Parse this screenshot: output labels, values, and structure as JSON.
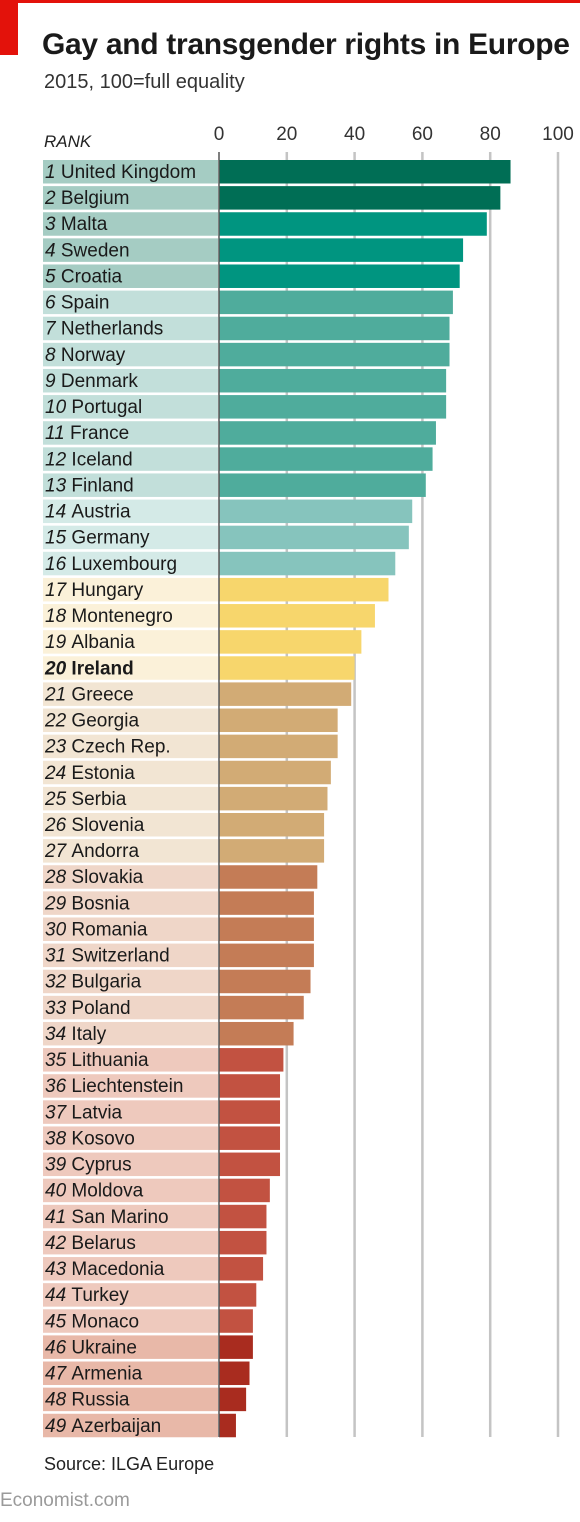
{
  "header": {
    "title": "Gay and transgender rights in Europe",
    "subtitle": "2015, 100=full equality",
    "rank_label": "RANK"
  },
  "footer": {
    "source": "Source: ILGA Europe",
    "credit": "Economist.com"
  },
  "colors": {
    "brand_red": "#e3120b",
    "group_1": "#006e55",
    "group_2": "#009580",
    "group_3": "#4fac9c",
    "group_4": "#86c4bd",
    "group_5": "#f7d66c",
    "group_6": "#d2ab75",
    "group_7": "#c47c56",
    "group_8": "#c25241",
    "group_9": "#a92c1f"
  },
  "chart_data": {
    "type": "bar",
    "orientation": "horizontal",
    "title": "Gay and transgender rights in Europe",
    "subtitle": "2015, 100=full equality",
    "xlim": [
      0,
      100
    ],
    "xticks": [
      0,
      20,
      40,
      60,
      80,
      100
    ],
    "grid": true,
    "highlight": "Ireland",
    "categories": [
      "United Kingdom",
      "Belgium",
      "Malta",
      "Sweden",
      "Croatia",
      "Spain",
      "Netherlands",
      "Norway",
      "Denmark",
      "Portugal",
      "France",
      "Iceland",
      "Finland",
      "Austria",
      "Germany",
      "Luxembourg",
      "Hungary",
      "Montenegro",
      "Albania",
      "Ireland",
      "Greece",
      "Georgia",
      "Czech Rep.",
      "Estonia",
      "Serbia",
      "Slovenia",
      "Andorra",
      "Slovakia",
      "Bosnia",
      "Romania",
      "Switzerland",
      "Bulgaria",
      "Poland",
      "Italy",
      "Lithuania",
      "Liechtenstein",
      "Latvia",
      "Kosovo",
      "Cyprus",
      "Moldova",
      "San Marino",
      "Belarus",
      "Macedonia",
      "Turkey",
      "Monaco",
      "Ukraine",
      "Armenia",
      "Russia",
      "Azerbaijan"
    ],
    "ranks": [
      1,
      2,
      3,
      4,
      5,
      6,
      7,
      8,
      9,
      10,
      11,
      12,
      13,
      14,
      15,
      16,
      17,
      18,
      19,
      20,
      21,
      22,
      23,
      24,
      25,
      26,
      27,
      28,
      29,
      30,
      31,
      32,
      33,
      34,
      35,
      36,
      37,
      38,
      39,
      40,
      41,
      42,
      43,
      44,
      45,
      46,
      47,
      48,
      49
    ],
    "values": [
      86,
      83,
      79,
      72,
      71,
      69,
      68,
      68,
      67,
      67,
      64,
      63,
      61,
      57,
      56,
      52,
      50,
      46,
      42,
      40,
      39,
      35,
      35,
      33,
      32,
      31,
      31,
      29,
      28,
      28,
      28,
      27,
      25,
      22,
      19,
      18,
      18,
      18,
      18,
      15,
      14,
      14,
      13,
      11,
      10,
      10,
      9,
      8,
      5
    ],
    "groups": [
      1,
      1,
      2,
      2,
      2,
      3,
      3,
      3,
      3,
      3,
      3,
      3,
      3,
      4,
      4,
      4,
      5,
      5,
      5,
      5,
      6,
      6,
      6,
      6,
      6,
      6,
      6,
      7,
      7,
      7,
      7,
      7,
      7,
      7,
      8,
      8,
      8,
      8,
      8,
      8,
      8,
      8,
      8,
      8,
      8,
      9,
      9,
      9,
      9
    ]
  }
}
